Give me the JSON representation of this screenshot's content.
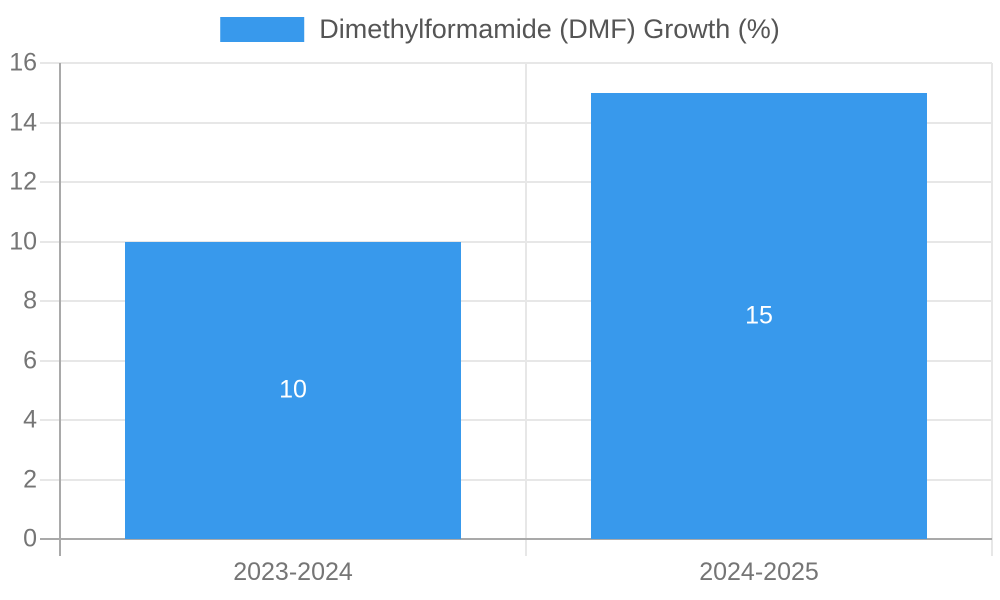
{
  "chart_data": {
    "type": "bar",
    "categories": [
      "2023-2024",
      "2024-2025"
    ],
    "values": [
      10,
      15
    ],
    "series_label": "Dimethylformamide (DMF) Growth (%)",
    "title": "",
    "xlabel": "",
    "ylabel": "",
    "ylim": [
      0,
      16
    ],
    "ytick_step": 2,
    "yticks": [
      0,
      2,
      4,
      6,
      8,
      10,
      12,
      14,
      16
    ],
    "grid": true,
    "legend_position": "top",
    "colors": {
      "background": "#ffffff",
      "bar": "#3899ec",
      "bar_label": "#ffffff",
      "gridline": "#e7e7e7",
      "axis": "#a9a9a9",
      "tick_label": "#757575",
      "legend_text": "#555555"
    }
  }
}
